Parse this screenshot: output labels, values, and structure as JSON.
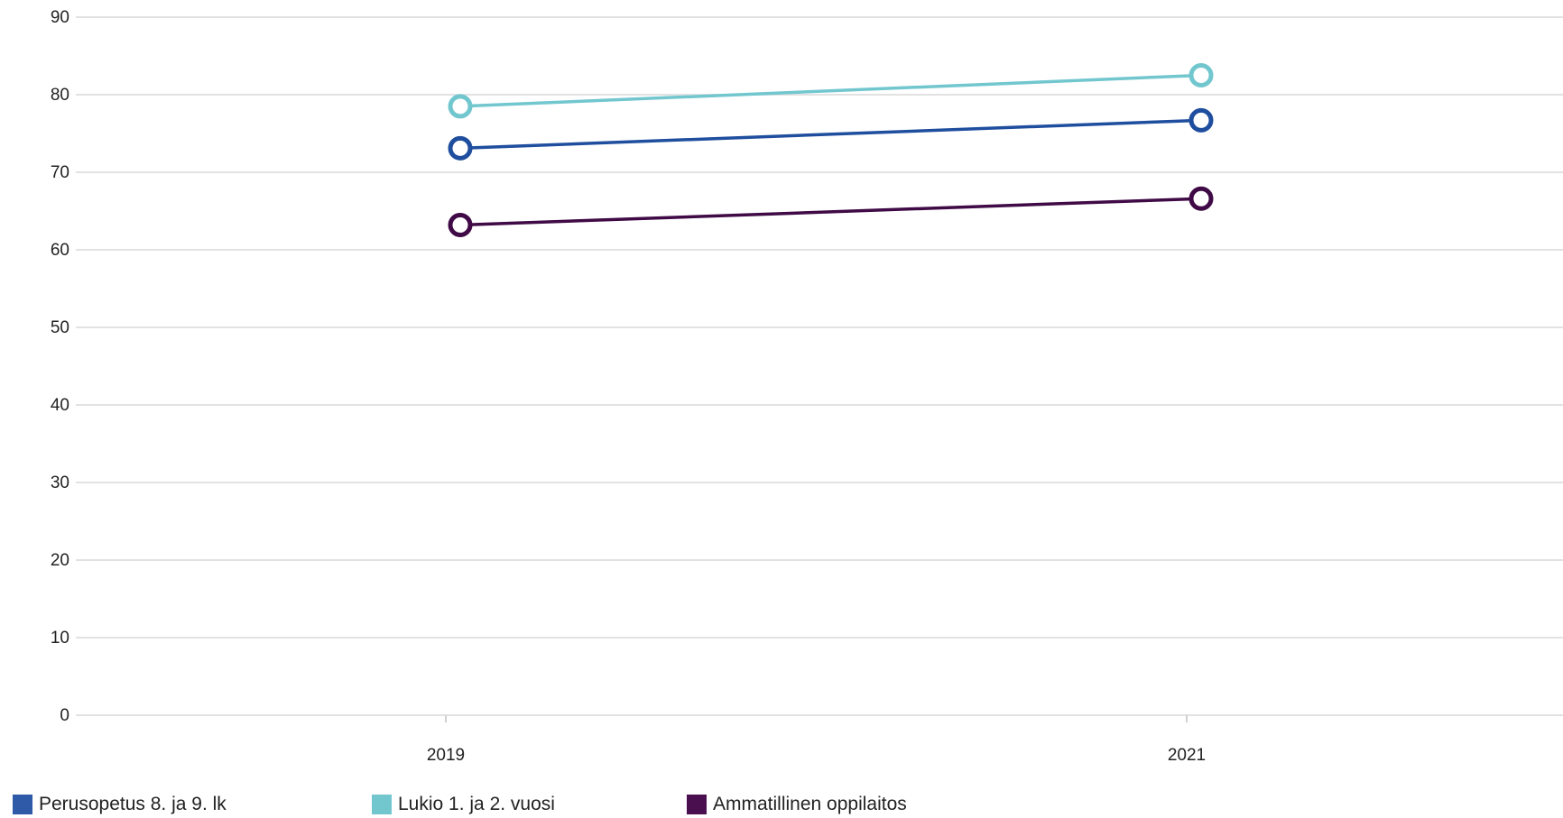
{
  "chart_data": {
    "type": "line",
    "title": "",
    "xlabel": "",
    "ylabel": "",
    "categories": [
      "2019",
      "2021"
    ],
    "ylim": [
      0,
      90
    ],
    "yticks": [
      0,
      10,
      20,
      30,
      40,
      50,
      60,
      70,
      80,
      90
    ],
    "grid": true,
    "legend_position": "bottom-left",
    "series": [
      {
        "name": "Perusopetus 8. ja 9. lk",
        "values": [
          73.1,
          76.7
        ],
        "color": "#1f4e9e"
      },
      {
        "name": "Lukio 1. ja 2. vuosi",
        "values": [
          78.5,
          82.5
        ],
        "color": "#72c7cf"
      },
      {
        "name": "Ammatillinen oppilaitos",
        "values": [
          63.2,
          66.6
        ],
        "color": "#3f0a45"
      }
    ]
  },
  "legend": {
    "items": [
      {
        "label": "Perusopetus 8. ja 9. lk",
        "color": "#2e5aa8"
      },
      {
        "label": "Lukio 1. ja 2. vuosi",
        "color": "#72c7cf"
      },
      {
        "label": "Ammatillinen oppilaitos",
        "color": "#4a0f4f"
      }
    ]
  }
}
